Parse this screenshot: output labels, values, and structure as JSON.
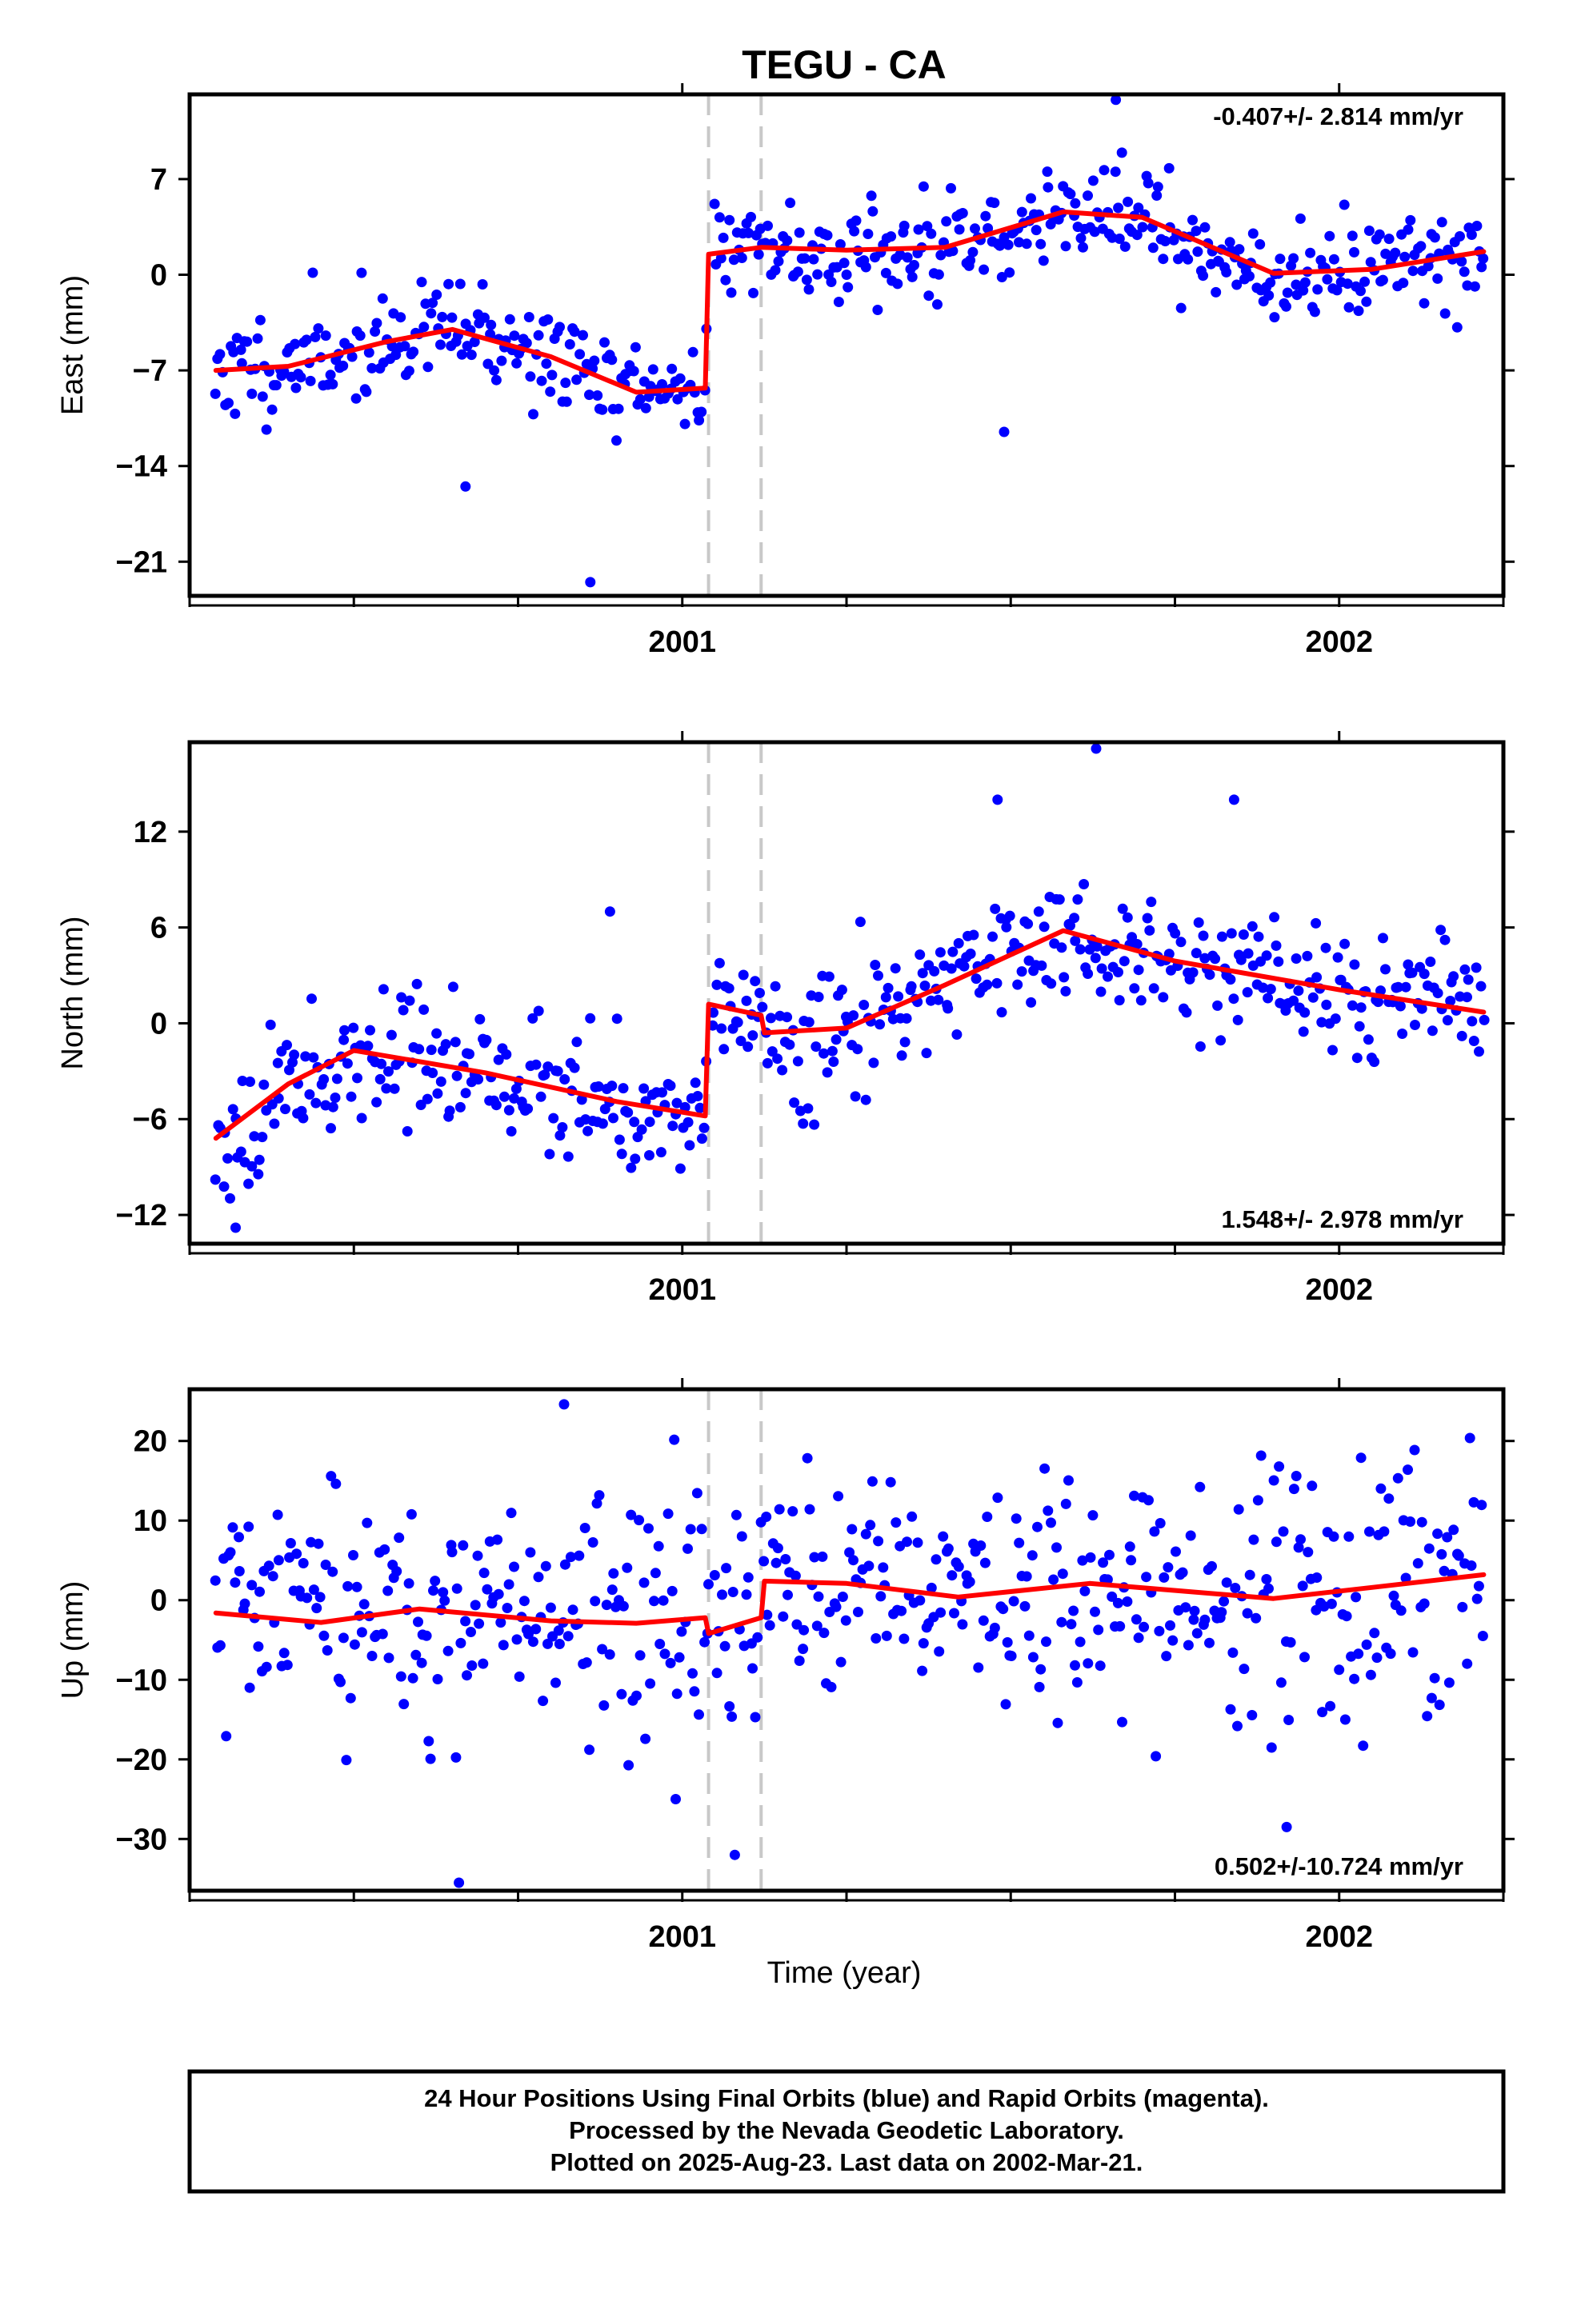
{
  "chart_data": {
    "type": "scatter",
    "title": "TEGU - CA",
    "xlabel": "Time (year)",
    "x_ticks": [
      2001,
      2002
    ],
    "xlim": [
      2000.25,
      2002.25
    ],
    "offset_markers": [
      2001.04,
      2001.12
    ],
    "colors": {
      "points": "#0000ff",
      "model": "#ff0000",
      "markers": "#c8c8c8",
      "frame": "#000000"
    },
    "panels": [
      {
        "ylabel": "East (mm)",
        "ylim": [
          -23.5,
          13.2
        ],
        "yticks": [
          7,
          0,
          -7,
          -14,
          -21
        ],
        "rate_label": "-0.407+/- 2.814 mm/yr",
        "rate_position": "top-right",
        "model": {
          "x": [
            2000.29,
            2000.4,
            2000.55,
            2000.65,
            2000.8,
            2000.93,
            2001.035,
            2001.04,
            2001.12,
            2001.25,
            2001.4,
            2001.58,
            2001.7,
            2001.9,
            2002.05,
            2002.22
          ],
          "y": [
            -7.0,
            -6.7,
            -4.9,
            -4.0,
            -6.0,
            -8.6,
            -8.3,
            1.5,
            2.0,
            1.8,
            2.0,
            4.6,
            4.2,
            0.1,
            0.4,
            1.7
          ]
        },
        "scatter": {
          "points": 520,
          "seed": 11,
          "noise": 1.8,
          "outliers": [
            [
              2000.86,
              -22.5
            ],
            [
              2001.49,
              -11.5
            ],
            [
              2000.67,
              -15.5
            ],
            [
              2001.66,
              12.8
            ]
          ]
        }
      },
      {
        "ylabel": "North (mm)",
        "ylim": [
          -13.8,
          17.6
        ],
        "yticks": [
          12,
          6,
          0,
          -6,
          -12
        ],
        "rate_label": "1.548+/- 2.978 mm/yr",
        "rate_position": "bottom-right",
        "model": {
          "x": [
            2000.29,
            2000.4,
            2000.5,
            2000.7,
            2000.9,
            2001.035,
            2001.04,
            2001.12,
            2001.125,
            2001.25,
            2001.4,
            2001.58,
            2001.75,
            2002.0,
            2002.22
          ],
          "y": [
            -7.2,
            -3.8,
            -1.7,
            -3.1,
            -4.9,
            -5.8,
            1.2,
            0.5,
            -0.6,
            -0.3,
            2.4,
            5.8,
            3.9,
            2.1,
            0.7
          ]
        },
        "scatter": {
          "points": 520,
          "seed": 23,
          "noise": 2.0,
          "outliers": [
            [
              2001.63,
              17.2
            ],
            [
              2001.48,
              14.0
            ],
            [
              2001.84,
              14.0
            ],
            [
              2000.89,
              7.0
            ],
            [
              2000.32,
              -12.8
            ]
          ]
        }
      },
      {
        "ylabel": "Up (mm)",
        "ylim": [
          -36.5,
          26.5
        ],
        "yticks": [
          20,
          10,
          0,
          -10,
          -20,
          -30
        ],
        "rate_label": "0.502+/-10.724 mm/yr",
        "rate_position": "bottom-right",
        "model": {
          "x": [
            2000.29,
            2000.45,
            2000.6,
            2000.8,
            2000.93,
            2001.035,
            2001.04,
            2001.12,
            2001.125,
            2001.25,
            2001.42,
            2001.62,
            2001.9,
            2002.05,
            2002.22
          ],
          "y": [
            -1.6,
            -2.8,
            -1.1,
            -2.6,
            -2.9,
            -2.2,
            -4.2,
            -2.2,
            2.4,
            2.1,
            0.4,
            2.1,
            0.2,
            1.6,
            3.2
          ]
        },
        "scatter": {
          "points": 520,
          "seed": 37,
          "noise": 7.5,
          "outliers": [
            [
              2000.82,
              24.6
            ],
            [
              2000.66,
              -35.5
            ],
            [
              2001.08,
              -32.0
            ],
            [
              2000.99,
              -25.0
            ],
            [
              2001.92,
              -28.5
            ]
          ]
        }
      }
    ]
  },
  "footer": {
    "lines": [
      "24 Hour Positions Using Final Orbits (blue) and Rapid Orbits (magenta).",
      "Processed by the Nevada Geodetic Laboratory.",
      "Plotted on 2025-Aug-23. Last data on 2002-Mar-21."
    ]
  }
}
